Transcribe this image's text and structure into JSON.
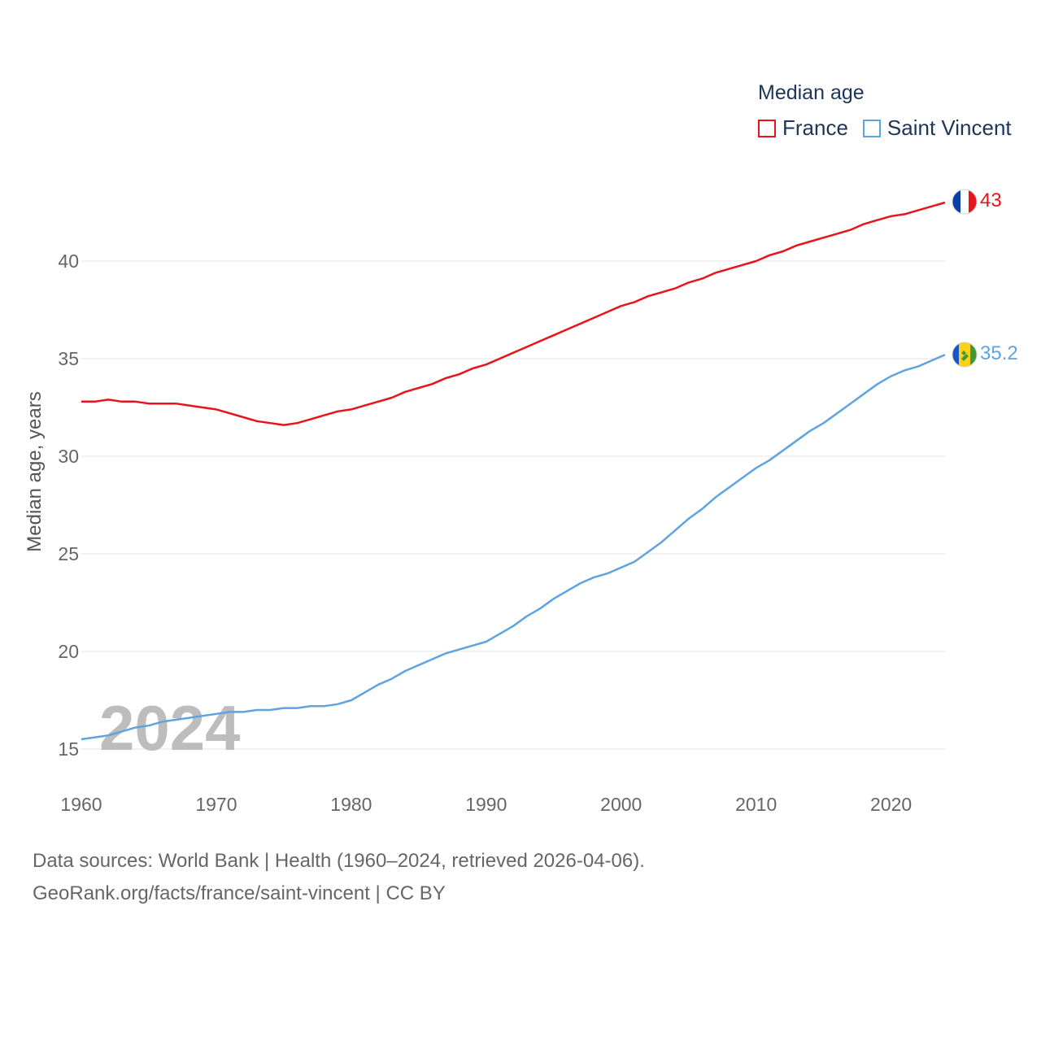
{
  "legend": {
    "title": "Median age",
    "entries": [
      {
        "name": "France",
        "color": "#e8141c"
      },
      {
        "name": "Saint Vincent",
        "color": "#5fa3df"
      }
    ]
  },
  "year_watermark": "2024",
  "sources": {
    "line1": "Data sources: World Bank | Health (1960–2024, retrieved 2026-04-06).",
    "line2": "GeoRank.org/facts/france/saint-vincent | CC BY"
  },
  "chart_data": {
    "type": "line",
    "title": "Median age",
    "xlabel": "",
    "ylabel": "Median age, years",
    "xlim": [
      1960,
      2024
    ],
    "ylim": [
      15,
      43
    ],
    "xticks": [
      1960,
      1970,
      1980,
      1990,
      2000,
      2010,
      2020
    ],
    "yticks": [
      15,
      20,
      25,
      30,
      35,
      40
    ],
    "grid": true,
    "legend_position": "top-right",
    "x": [
      1960,
      1961,
      1962,
      1963,
      1964,
      1965,
      1966,
      1967,
      1968,
      1969,
      1970,
      1971,
      1972,
      1973,
      1974,
      1975,
      1976,
      1977,
      1978,
      1979,
      1980,
      1981,
      1982,
      1983,
      1984,
      1985,
      1986,
      1987,
      1988,
      1989,
      1990,
      1991,
      1992,
      1993,
      1994,
      1995,
      1996,
      1997,
      1998,
      1999,
      2000,
      2001,
      2002,
      2003,
      2004,
      2005,
      2006,
      2007,
      2008,
      2009,
      2010,
      2011,
      2012,
      2013,
      2014,
      2015,
      2016,
      2017,
      2018,
      2019,
      2020,
      2021,
      2022,
      2023,
      2024
    ],
    "series": [
      {
        "name": "France",
        "color": "#e8141c",
        "end_label": "43",
        "values": [
          32.8,
          32.8,
          32.9,
          32.8,
          32.8,
          32.7,
          32.7,
          32.7,
          32.6,
          32.5,
          32.4,
          32.2,
          32.0,
          31.8,
          31.7,
          31.6,
          31.7,
          31.9,
          32.1,
          32.3,
          32.4,
          32.6,
          32.8,
          33.0,
          33.3,
          33.5,
          33.7,
          34.0,
          34.2,
          34.5,
          34.7,
          35.0,
          35.3,
          35.6,
          35.9,
          36.2,
          36.5,
          36.8,
          37.1,
          37.4,
          37.7,
          37.9,
          38.2,
          38.4,
          38.6,
          38.9,
          39.1,
          39.4,
          39.6,
          39.8,
          40.0,
          40.3,
          40.5,
          40.8,
          41.0,
          41.2,
          41.4,
          41.6,
          41.9,
          42.1,
          42.3,
          42.4,
          42.6,
          42.8,
          43.0
        ]
      },
      {
        "name": "Saint Vincent",
        "color": "#5fa3df",
        "end_label": "35.2",
        "values": [
          15.5,
          15.6,
          15.7,
          15.9,
          16.1,
          16.2,
          16.4,
          16.5,
          16.6,
          16.7,
          16.8,
          16.9,
          16.9,
          17.0,
          17.0,
          17.1,
          17.1,
          17.2,
          17.2,
          17.3,
          17.5,
          17.9,
          18.3,
          18.6,
          19.0,
          19.3,
          19.6,
          19.9,
          20.1,
          20.3,
          20.5,
          20.9,
          21.3,
          21.8,
          22.2,
          22.7,
          23.1,
          23.5,
          23.8,
          24.0,
          24.3,
          24.6,
          25.1,
          25.6,
          26.2,
          26.8,
          27.3,
          27.9,
          28.4,
          28.9,
          29.4,
          29.8,
          30.3,
          30.8,
          31.3,
          31.7,
          32.2,
          32.7,
          33.2,
          33.7,
          34.1,
          34.4,
          34.6,
          34.9,
          35.2
        ]
      }
    ]
  }
}
